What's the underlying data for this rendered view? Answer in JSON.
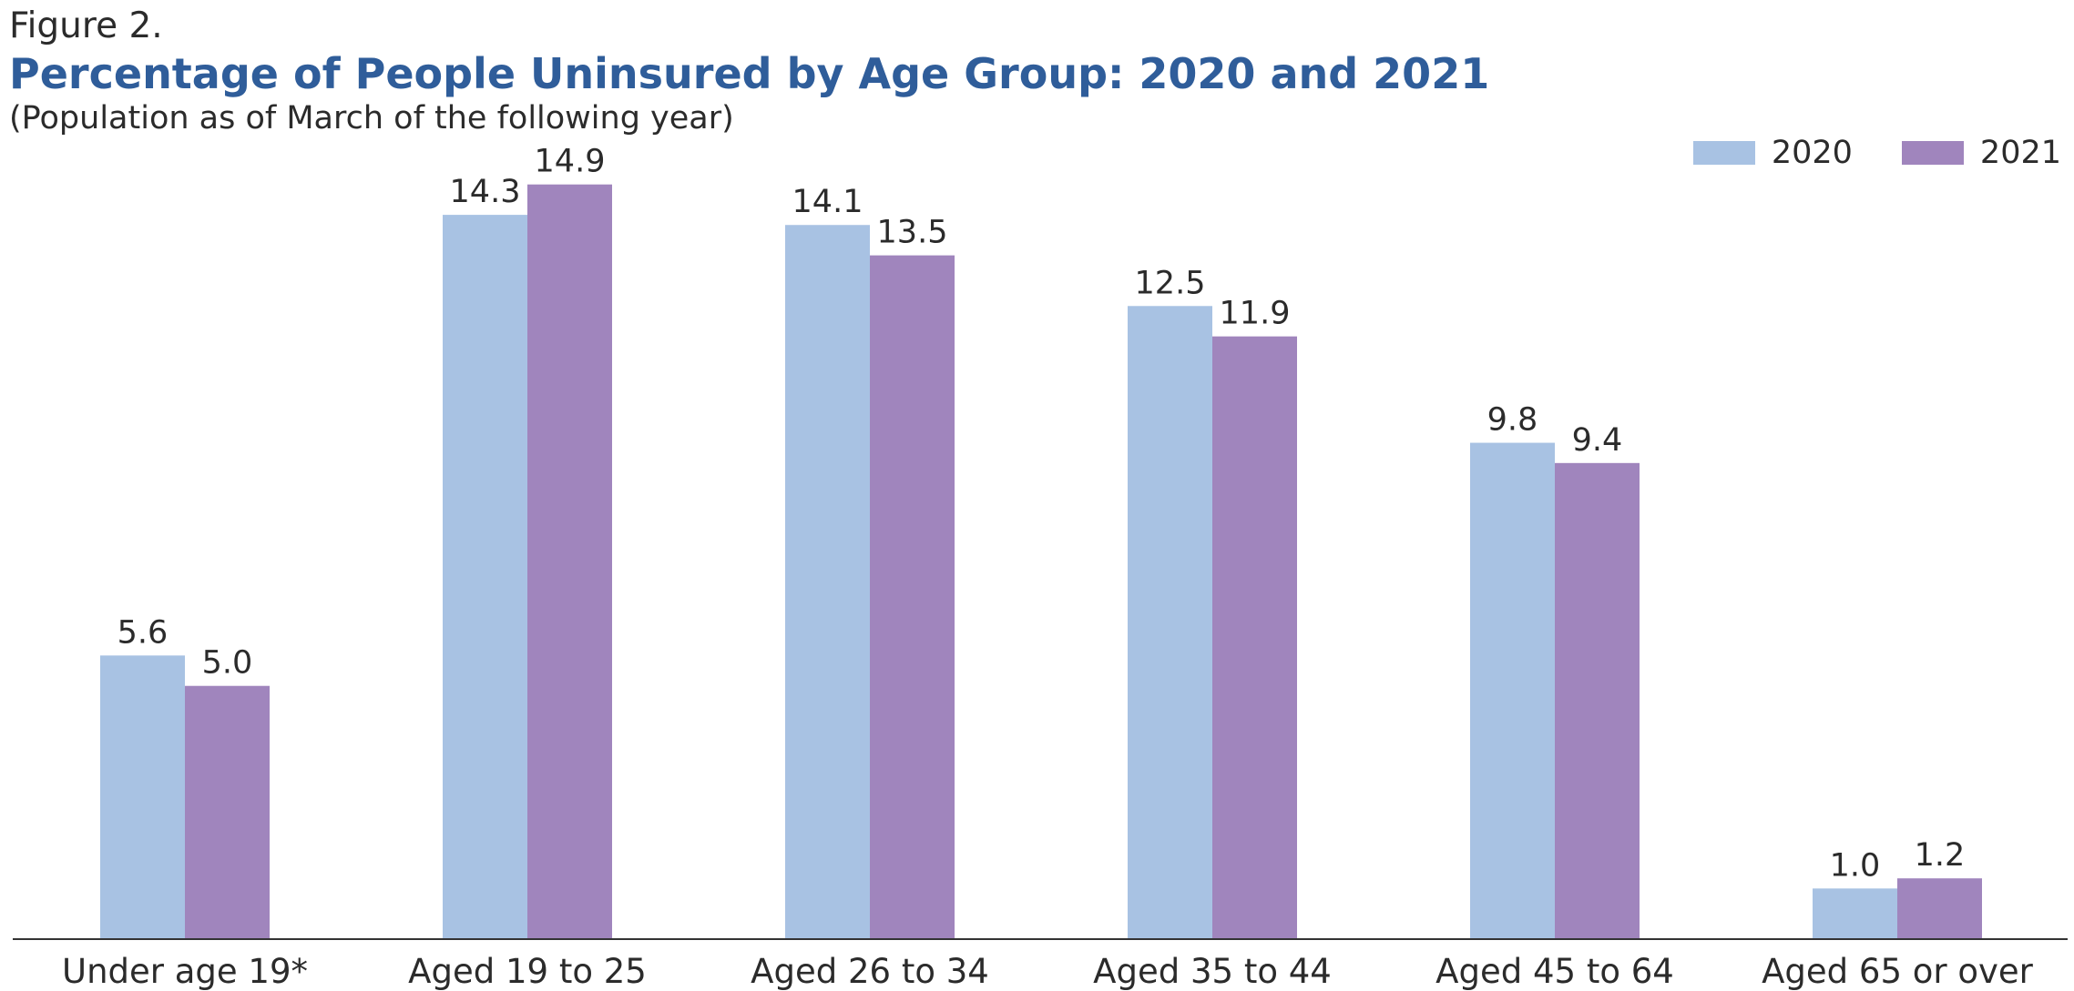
{
  "figure_label": "Figure 2.",
  "chart_data": {
    "type": "bar",
    "title": "Percentage of People Uninsured by Age Group: 2020 and 2021",
    "subtitle": "(Population as of March of the following year)",
    "xlabel": "",
    "ylabel": "",
    "ylim": [
      0,
      15.2
    ],
    "grid": false,
    "legend_position": "top-right",
    "categories": [
      "Under age 19*",
      "Aged 19 to 25",
      "Aged 26 to 34",
      "Aged 35 to 44",
      "Aged 45 to 64",
      "Aged 65 or over"
    ],
    "series": [
      {
        "name": "2020",
        "color": "#a8c2e3",
        "values": [
          5.6,
          14.3,
          14.1,
          12.5,
          9.8,
          1.0
        ],
        "labels": [
          "5.6",
          "14.3",
          "14.1",
          "12.5",
          "9.8",
          "1.0"
        ]
      },
      {
        "name": "2021",
        "color": "#a085bd",
        "values": [
          5.0,
          14.9,
          13.5,
          11.9,
          9.4,
          1.2
        ],
        "labels": [
          "5.0",
          "14.9",
          "13.5",
          "11.9",
          "9.4",
          "1.2"
        ]
      }
    ]
  }
}
